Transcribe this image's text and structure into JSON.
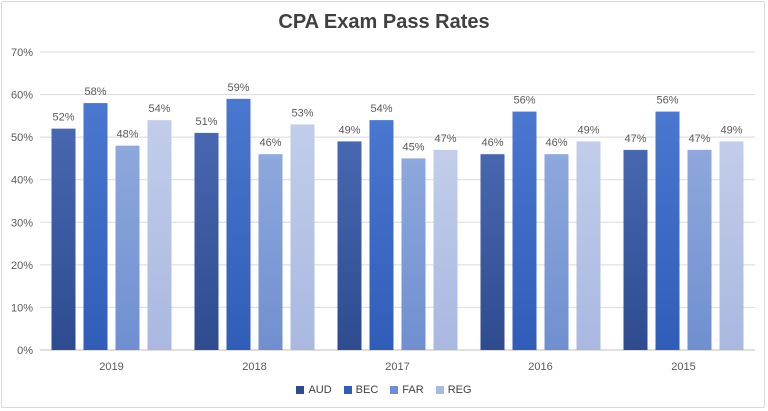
{
  "chart_data": {
    "type": "bar",
    "title": "CPA Exam Pass Rates",
    "xlabel": "",
    "ylabel": "",
    "categories": [
      "2019",
      "2018",
      "2017",
      "2016",
      "2015"
    ],
    "ylim": [
      0,
      70
    ],
    "yticks": [
      "0%",
      "10%",
      "20%",
      "30%",
      "40%",
      "50%",
      "60%",
      "70%"
    ],
    "grid": true,
    "legend_position": "bottom",
    "value_suffix": "%",
    "series": [
      {
        "name": "AUD",
        "color": "#2e4b8f",
        "color_light": "#4767b0",
        "values": [
          52,
          51,
          49,
          46,
          47
        ]
      },
      {
        "name": "BEC",
        "color": "#2f5db8",
        "color_light": "#4a77cf",
        "values": [
          58,
          59,
          54,
          56,
          56
        ]
      },
      {
        "name": "FAR",
        "color": "#6f8fd0",
        "color_light": "#8ea8dc",
        "values": [
          48,
          46,
          45,
          46,
          47
        ]
      },
      {
        "name": "REG",
        "color": "#a9b8e0",
        "color_light": "#c1cdea",
        "values": [
          54,
          53,
          47,
          49,
          49
        ]
      }
    ]
  }
}
